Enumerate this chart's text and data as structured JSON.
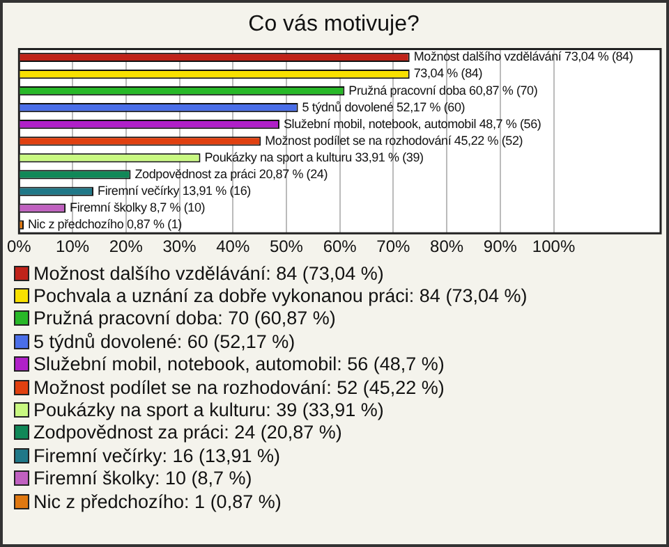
{
  "chart_data": {
    "type": "bar",
    "orientation": "horizontal",
    "title": "Co vás motivuje?",
    "categories": [
      null,
      null,
      null,
      null,
      null,
      null,
      null,
      null,
      null,
      null,
      null
    ],
    "xlim": [
      0,
      120
    ],
    "xticks": [
      {
        "value": 0,
        "label": "0%"
      },
      {
        "value": 10,
        "label": "10%"
      },
      {
        "value": 20,
        "label": "20%"
      },
      {
        "value": 30,
        "label": "30%"
      },
      {
        "value": 40,
        "label": "40%"
      },
      {
        "value": 50,
        "label": "50%"
      },
      {
        "value": 60,
        "label": "60%"
      },
      {
        "value": 70,
        "label": "70%"
      },
      {
        "value": 80,
        "label": "80%"
      },
      {
        "value": 90,
        "label": "90%"
      },
      {
        "value": 100,
        "label": "100%"
      }
    ],
    "grid": "x",
    "legend": "bottom",
    "series": [
      {
        "name": "Možnost dalšího vzdělávání: 84 (73,04 %)",
        "color": "#c0231a",
        "values": [
          73.04,
          null,
          null,
          null,
          null,
          null,
          null,
          null,
          null,
          null,
          null
        ],
        "value_labels": [
          "Možnost dalšího vzdělávání 73,04 % (84)",
          null,
          null,
          null,
          null,
          null,
          null,
          null,
          null,
          null,
          null
        ]
      },
      {
        "name": "Pochvala a uznání za dobře vykonanou práci: 84 (73,04 %)",
        "color": "#f8e000",
        "values": [
          null,
          73.04,
          null,
          null,
          null,
          null,
          null,
          null,
          null,
          null,
          null
        ],
        "value_labels": [
          null,
          "73,04 % (84)",
          null,
          null,
          null,
          null,
          null,
          null,
          null,
          null,
          null
        ]
      },
      {
        "name": "Pružná pracovní doba: 70 (60,87 %)",
        "color": "#28b828",
        "values": [
          null,
          null,
          60.87,
          null,
          null,
          null,
          null,
          null,
          null,
          null,
          null
        ],
        "value_labels": [
          null,
          null,
          "Pružná pracovní doba 60,87 % (70)",
          null,
          null,
          null,
          null,
          null,
          null,
          null,
          null
        ]
      },
      {
        "name": "5 týdnů dovolené: 60 (52,17 %)",
        "color": "#4a6ee8",
        "values": [
          null,
          null,
          null,
          52.17,
          null,
          null,
          null,
          null,
          null,
          null,
          null
        ],
        "value_labels": [
          null,
          null,
          null,
          "5 týdnů dovolené 52,17 % (60)",
          null,
          null,
          null,
          null,
          null,
          null,
          null
        ]
      },
      {
        "name": "Služební mobil, notebook, automobil: 56 (48,7 %)",
        "color": "#b020c8",
        "values": [
          null,
          null,
          null,
          null,
          48.7,
          null,
          null,
          null,
          null,
          null,
          null
        ],
        "value_labels": [
          null,
          null,
          null,
          null,
          "Služební mobil, notebook, automobil 48,7 % (56)",
          null,
          null,
          null,
          null,
          null,
          null
        ]
      },
      {
        "name": "Možnost podílet se na rozhodování: 52 (45,22 %)",
        "color": "#e04010",
        "values": [
          null,
          null,
          null,
          null,
          null,
          45.22,
          null,
          null,
          null,
          null,
          null
        ],
        "value_labels": [
          null,
          null,
          null,
          null,
          null,
          "Možnost podílet se na rozhodování 45,22 % (52)",
          null,
          null,
          null,
          null,
          null
        ]
      },
      {
        "name": "Poukázky na sport a kulturu: 39 (33,91 %)",
        "color": "#c8f880",
        "values": [
          null,
          null,
          null,
          null,
          null,
          null,
          33.91,
          null,
          null,
          null,
          null
        ],
        "value_labels": [
          null,
          null,
          null,
          null,
          null,
          null,
          "Poukázky na sport a kulturu 33,91 % (39)",
          null,
          null,
          null,
          null
        ]
      },
      {
        "name": "Zodpovědnost za práci: 24 (20,87 %)",
        "color": "#108858",
        "values": [
          null,
          null,
          null,
          null,
          null,
          null,
          null,
          20.87,
          null,
          null,
          null
        ],
        "value_labels": [
          null,
          null,
          null,
          null,
          null,
          null,
          null,
          "Zodpovědnost za práci 20,87 % (24)",
          null,
          null,
          null
        ]
      },
      {
        "name": "Firemní večírky: 16 (13,91 %)",
        "color": "#207888",
        "values": [
          null,
          null,
          null,
          null,
          null,
          null,
          null,
          null,
          13.91,
          null,
          null
        ],
        "value_labels": [
          null,
          null,
          null,
          null,
          null,
          null,
          null,
          null,
          "Firemní večírky 13,91 % (16)",
          null,
          null
        ]
      },
      {
        "name": "Firemní školky: 10 (8,7 %)",
        "color": "#c060c0",
        "values": [
          null,
          null,
          null,
          null,
          null,
          null,
          null,
          null,
          null,
          8.7,
          null
        ],
        "value_labels": [
          null,
          null,
          null,
          null,
          null,
          null,
          null,
          null,
          null,
          "Firemní školky 8,7 % (10)",
          null
        ]
      },
      {
        "name": "Nic z předchozího: 1 (0,87 %)",
        "color": "#e07810",
        "values": [
          null,
          null,
          null,
          null,
          null,
          null,
          null,
          null,
          null,
          null,
          0.87
        ],
        "value_labels": [
          null,
          null,
          null,
          null,
          null,
          null,
          null,
          null,
          null,
          null,
          "Nic z předchozího 0,87 % (1)"
        ]
      }
    ]
  }
}
